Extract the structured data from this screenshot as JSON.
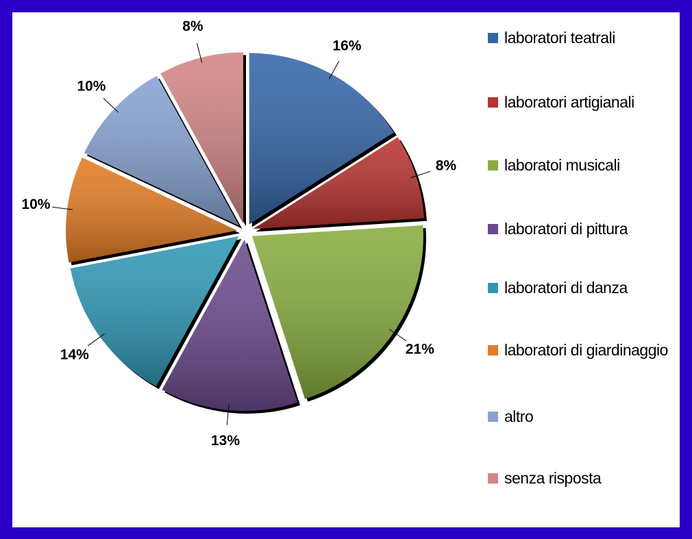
{
  "chart_data": {
    "type": "pie",
    "categories": [
      "laboratori teatrali",
      "laboratori artigianali",
      "laboratoi musicali",
      "laboratori di pittura",
      "laboratori di danza",
      "laboratori di giardinaggio",
      "altro",
      "senza risposta"
    ],
    "values": [
      16,
      8,
      21,
      13,
      14,
      10,
      10,
      8
    ],
    "value_labels": [
      "16%",
      "8%",
      "21%",
      "13%",
      "14%",
      "10%",
      "10%",
      "8%"
    ],
    "colors": [
      "#3465a8",
      "#b8322f",
      "#88ad3f",
      "#6b4a8e",
      "#2f98b6",
      "#e57b22",
      "#86a3d3",
      "#d38585"
    ],
    "legend": "right"
  }
}
